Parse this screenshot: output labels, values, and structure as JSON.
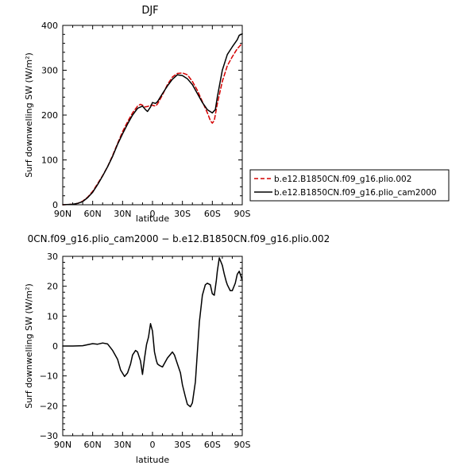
{
  "chart_data": [
    {
      "type": "line",
      "title": "DJF",
      "xlabel": "latitude",
      "ylabel": "Surf downwelling SW (W/m²)",
      "xlim": [
        90,
        -90
      ],
      "ylim": [
        0,
        400
      ],
      "xticks": [
        90,
        60,
        30,
        0,
        -30,
        -60,
        -90
      ],
      "xtick_labels": [
        "90N",
        "60N",
        "30N",
        "0",
        "30S",
        "60S",
        "90S"
      ],
      "yticks": [
        0,
        100,
        200,
        300,
        400
      ],
      "ytick_labels": [
        "0",
        "100",
        "200",
        "300",
        "400"
      ],
      "legend_position": "right",
      "series": [
        {
          "name": "b.e12.B1850CN.f09_g16.plio.002",
          "color": "#d40000",
          "dash": "dashed",
          "x": [
            90,
            80,
            75,
            70,
            65,
            60,
            55,
            50,
            45,
            40,
            35,
            30,
            25,
            20,
            15,
            12,
            10,
            8,
            5,
            2,
            0,
            -3,
            -5,
            -10,
            -15,
            -20,
            -25,
            -30,
            -35,
            -40,
            -45,
            -50,
            -55,
            -58,
            -60,
            -62,
            -65,
            -70,
            -75,
            -80,
            -85,
            -90
          ],
          "y": [
            0,
            1,
            3,
            8,
            17,
            30,
            47,
            65,
            85,
            110,
            137,
            163,
            185,
            205,
            220,
            224,
            222,
            218,
            219,
            222,
            222,
            220,
            225,
            245,
            268,
            285,
            293,
            294,
            290,
            275,
            255,
            230,
            205,
            188,
            182,
            188,
            225,
            275,
            310,
            330,
            348,
            360
          ]
        },
        {
          "name": "b.e12.B1850CN.f09_g16.plio_cam2000",
          "color": "#000000",
          "dash": "solid",
          "x": [
            90,
            80,
            75,
            70,
            65,
            60,
            55,
            50,
            45,
            40,
            35,
            30,
            25,
            20,
            15,
            10,
            7,
            5,
            2,
            0,
            -3,
            -5,
            -10,
            -15,
            -20,
            -25,
            -30,
            -35,
            -40,
            -45,
            -50,
            -55,
            -60,
            -63,
            -65,
            -70,
            -75,
            -80,
            -85,
            -87,
            -90
          ],
          "y": [
            0,
            1,
            3,
            7,
            16,
            28,
            45,
            64,
            85,
            108,
            135,
            158,
            180,
            200,
            215,
            220,
            212,
            208,
            218,
            228,
            226,
            230,
            248,
            265,
            280,
            290,
            288,
            281,
            268,
            248,
            228,
            212,
            205,
            212,
            240,
            300,
            335,
            352,
            368,
            378,
            381
          ]
        }
      ]
    },
    {
      "type": "line",
      "title": "0CN.f09_g16.plio_cam2000 − b.e12.B1850CN.f09_g16.plio.002",
      "xlabel": "latitude",
      "ylabel": "Surf downwelling SW (W/m²)",
      "xlim": [
        90,
        -90
      ],
      "ylim": [
        -30,
        30
      ],
      "xticks": [
        90,
        60,
        30,
        0,
        -30,
        -60,
        -90
      ],
      "xtick_labels": [
        "90N",
        "60N",
        "30N",
        "0",
        "30S",
        "60S",
        "90S"
      ],
      "yticks": [
        -30,
        -20,
        -10,
        0,
        10,
        20,
        30
      ],
      "ytick_labels": [
        "−30",
        "−20",
        "−10",
        "0",
        "10",
        "20",
        "30"
      ],
      "series": [
        {
          "color": "#000000",
          "x": [
            90,
            80,
            70,
            60,
            55,
            50,
            45,
            40,
            35,
            32,
            28,
            25,
            22,
            20,
            17,
            15,
            12,
            10,
            8,
            6,
            4,
            2,
            0,
            -2,
            -4,
            -5,
            -7,
            -10,
            -15,
            -20,
            -22,
            -25,
            -28,
            -30,
            -33,
            -35,
            -38,
            -40,
            -43,
            -45,
            -47,
            -50,
            -53,
            -55,
            -58,
            -60,
            -62,
            -64,
            -65,
            -67,
            -70,
            -72,
            -74,
            -75,
            -78,
            -80,
            -83,
            -85,
            -87,
            -90
          ],
          "y": [
            0,
            0,
            0.1,
            0.8,
            0.6,
            1.0,
            0.7,
            -1.5,
            -4.5,
            -8,
            -10.2,
            -9,
            -6,
            -3,
            -1.5,
            -2,
            -5,
            -9.5,
            -4,
            0.5,
            3,
            7.5,
            5,
            -2,
            -5,
            -6,
            -6.5,
            -7,
            -4,
            -2,
            -3,
            -6,
            -9,
            -13,
            -17,
            -19.5,
            -20.3,
            -19,
            -12,
            -2,
            8,
            17,
            20.5,
            21,
            20.5,
            17.5,
            17,
            22,
            25,
            29.5,
            27,
            24,
            21.5,
            20.5,
            18.5,
            18.5,
            21,
            24,
            25,
            22
          ]
        }
      ]
    }
  ]
}
